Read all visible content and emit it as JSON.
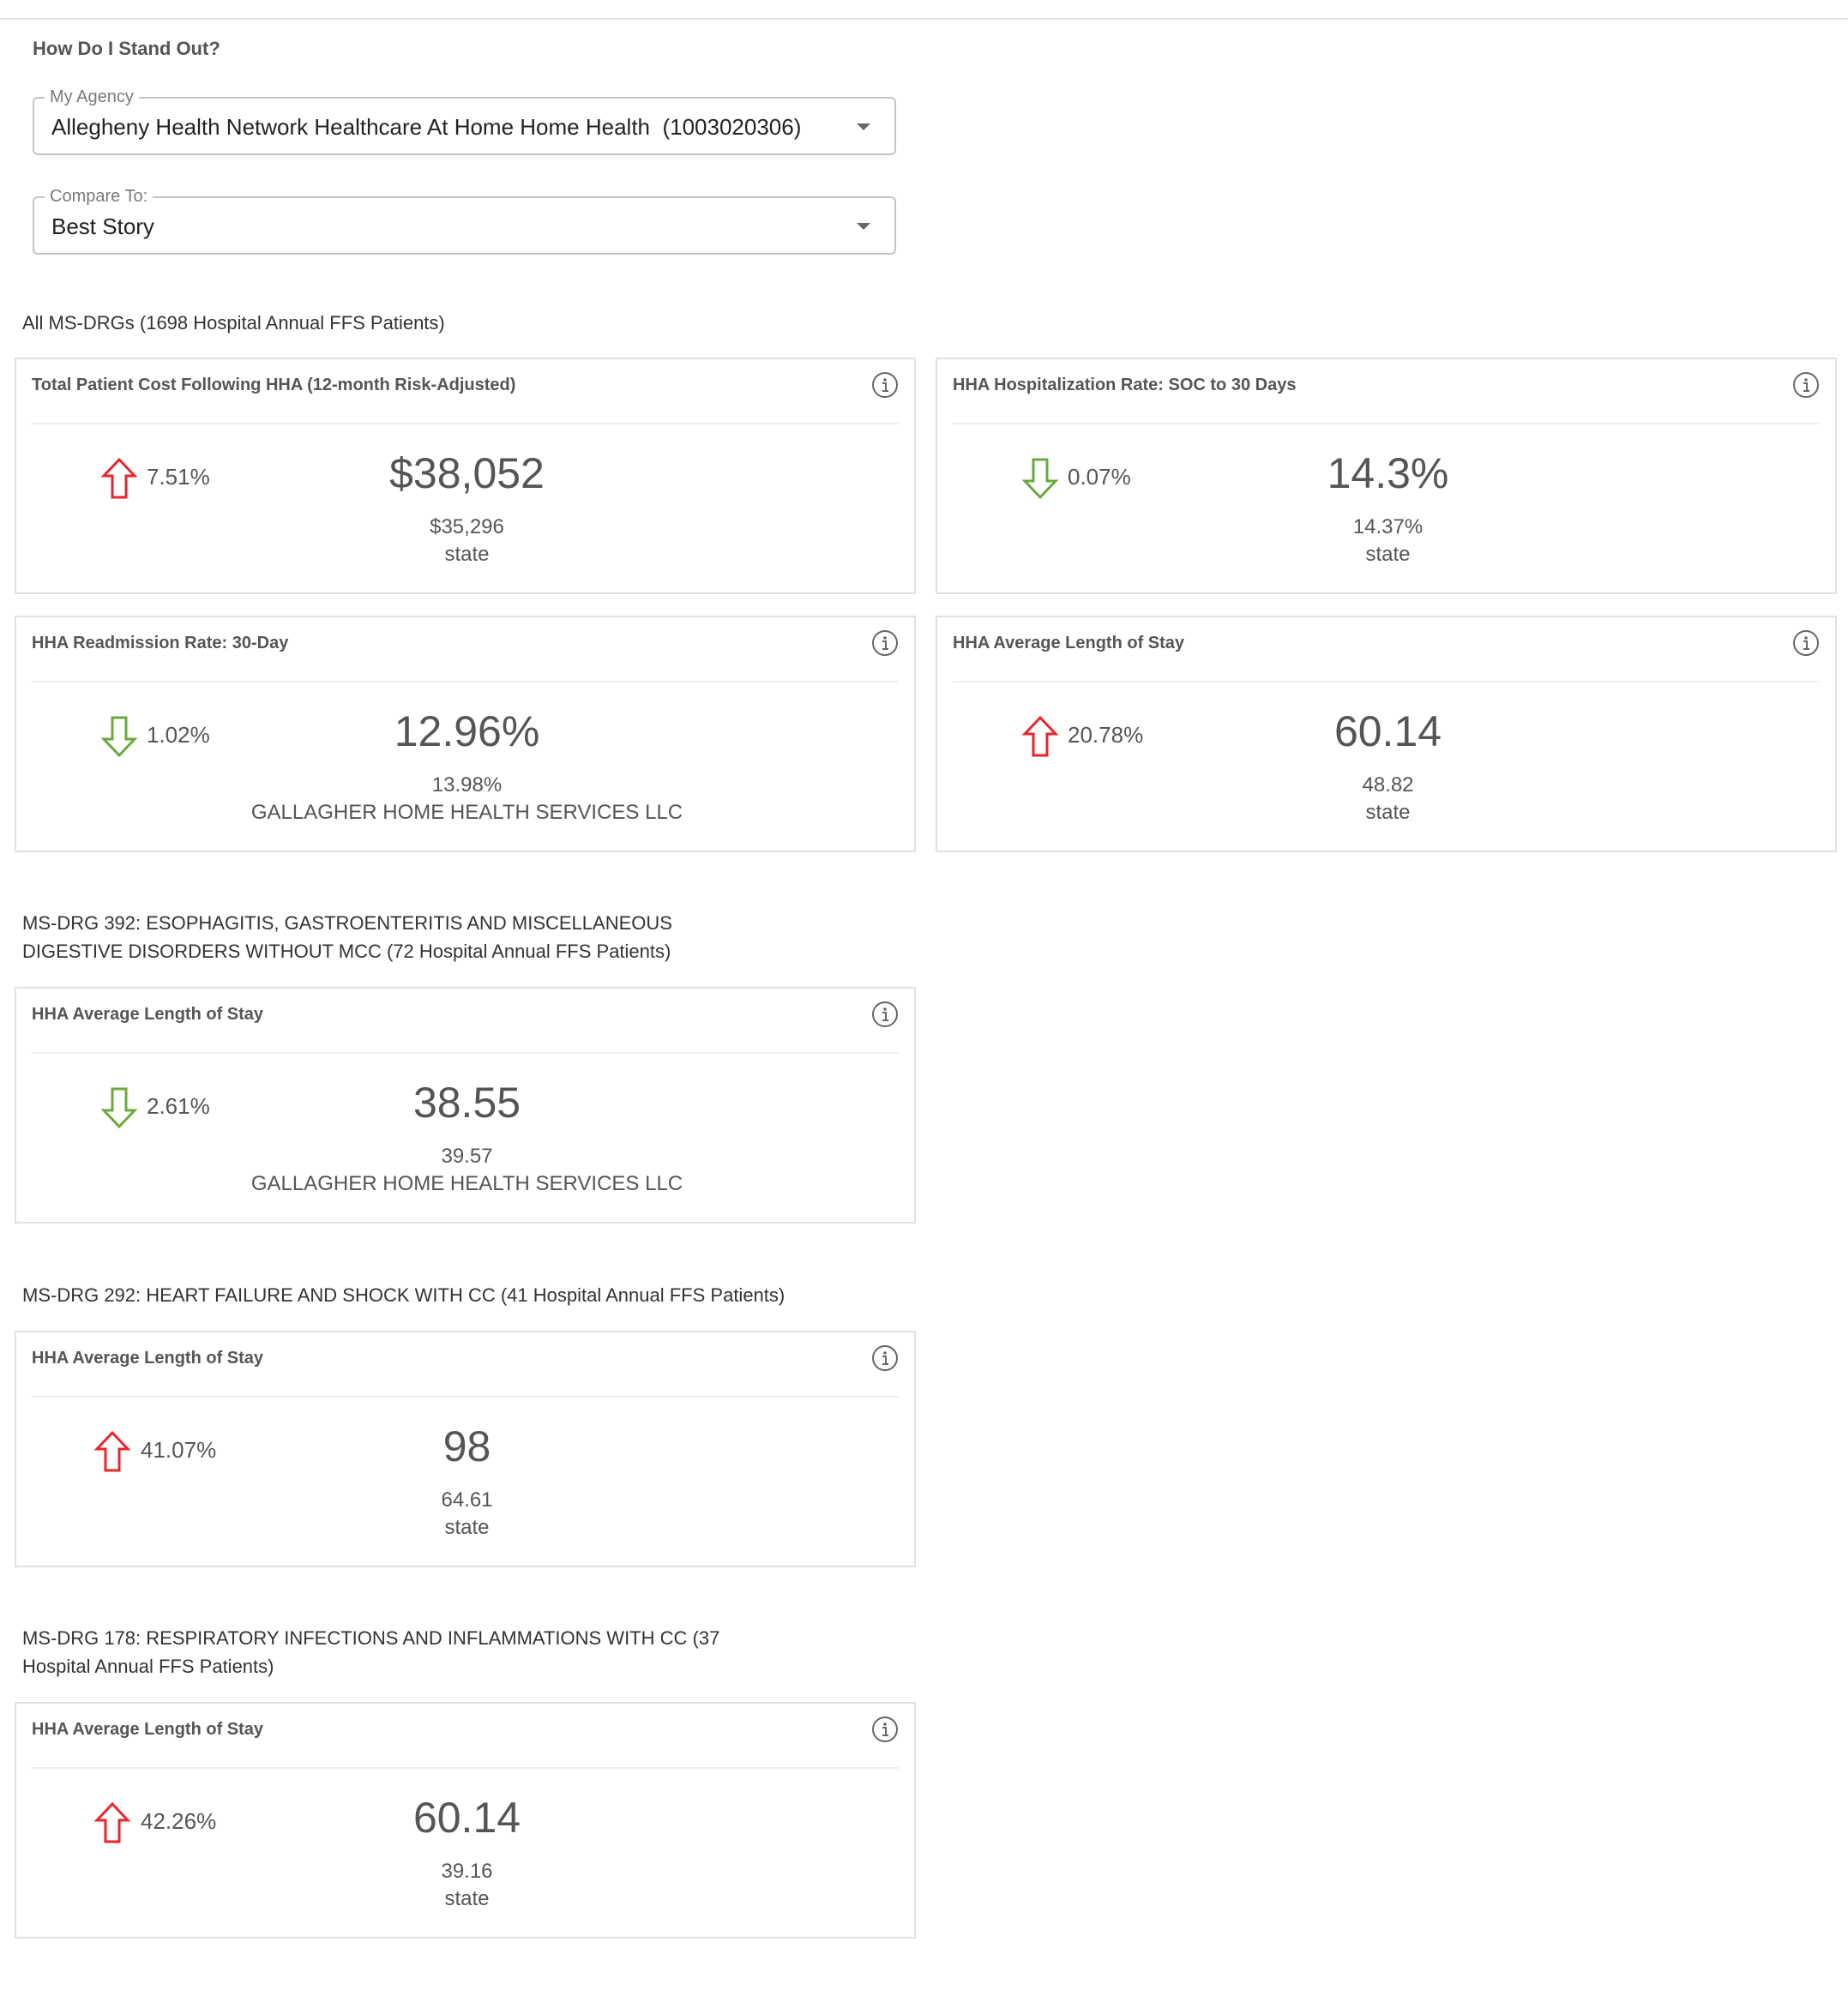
{
  "page": {
    "title": "How Do I Stand Out?"
  },
  "filters": {
    "agency": {
      "label": "My Agency",
      "value": "Allegheny Health Network Healthcare At Home Home Health  (1003020306)"
    },
    "compare": {
      "label": "Compare To:",
      "value": "Best Story"
    }
  },
  "colors": {
    "up": "#e8262b",
    "down": "#6aaa3c"
  },
  "sections": [
    {
      "title": "All MS-DRGs (1698 Hospital Annual FFS Patients)",
      "cards": [
        {
          "title": "Total Patient Cost Following HHA (12-month Risk-Adjusted)",
          "trend": "up",
          "trend_icon": "arrow-up-icon",
          "change": "7.51%",
          "value": "$38,052",
          "compare_value": "$35,296",
          "compare_label": "state"
        },
        {
          "title": "HHA Hospitalization Rate: SOC to 30 Days",
          "trend": "down",
          "trend_icon": "arrow-down-icon",
          "change": "0.07%",
          "value": "14.3%",
          "compare_value": "14.37%",
          "compare_label": "state"
        },
        {
          "title": "HHA Readmission Rate: 30-Day",
          "trend": "down",
          "trend_icon": "arrow-down-icon",
          "change": "1.02%",
          "value": "12.96%",
          "compare_value": "13.98%",
          "compare_label": "GALLAGHER HOME HEALTH SERVICES LLC"
        },
        {
          "title": "HHA Average Length of Stay",
          "trend": "up",
          "trend_icon": "arrow-up-icon",
          "change": "20.78%",
          "value": "60.14",
          "compare_value": "48.82",
          "compare_label": "state"
        }
      ]
    },
    {
      "title": "MS-DRG 392: ESOPHAGITIS, GASTROENTERITIS AND MISCELLANEOUS DIGESTIVE DISORDERS WITHOUT MCC (72 Hospital Annual FFS Patients)",
      "cards": [
        {
          "title": "HHA Average Length of Stay",
          "trend": "down",
          "trend_icon": "arrow-down-icon",
          "change": "2.61%",
          "value": "38.55",
          "compare_value": "39.57",
          "compare_label": "GALLAGHER HOME HEALTH SERVICES LLC"
        }
      ]
    },
    {
      "title": "MS-DRG 292: HEART FAILURE AND SHOCK WITH CC (41 Hospital Annual FFS Patients)",
      "cards": [
        {
          "title": "HHA Average Length of Stay",
          "trend": "up",
          "trend_icon": "arrow-up-icon",
          "change": "41.07%",
          "value": "98",
          "compare_value": "64.61",
          "compare_label": "state"
        }
      ]
    },
    {
      "title": "MS-DRG 178: RESPIRATORY INFECTIONS AND INFLAMMATIONS WITH CC (37 Hospital Annual FFS Patients)",
      "cards": [
        {
          "title": "HHA Average Length of Stay",
          "trend": "up",
          "trend_icon": "arrow-up-icon",
          "change": "42.26%",
          "value": "60.14",
          "compare_value": "39.16",
          "compare_label": "state"
        }
      ]
    }
  ]
}
